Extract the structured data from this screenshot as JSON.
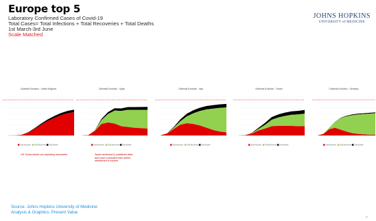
{
  "header": {
    "title": "Europe top 5",
    "subtitle1": "Laboratory Confirmed Cases of Covid-19",
    "subtitle2": "Total Cases= Total Infections + Total Recoveries + Total Deaths",
    "subtitle3": "1st March-3rd June",
    "scale_note": "Scale Matched"
  },
  "logo": {
    "line1": "JOHNS HOPKINS",
    "line2": "UNIVERSITY of MEDICINE"
  },
  "notes": {
    "uk": "UK Government not reporting recoveries",
    "spain": "Spain reviewed & published data and have corrected their series mentioned in source"
  },
  "footer": {
    "source": "Source: Johns Hopkins University of Medicine",
    "analysis": "Analysis & Graphics: Present Value",
    "page": "##"
  },
  "colors": {
    "infections": "#e00000",
    "recoveries": "#92d050",
    "deaths": "#000000",
    "reference": "#e00000"
  },
  "chart_data": [
    {
      "type": "area",
      "title": "Outbreak Evolution - United Kingdom",
      "x": [
        0,
        0.1,
        0.2,
        0.3,
        0.4,
        0.5,
        0.6,
        0.7,
        0.8,
        0.9,
        1.0
      ],
      "series": [
        {
          "name": "Total Infections",
          "values": [
            0,
            0.002,
            0.015,
            0.07,
            0.17,
            0.28,
            0.38,
            0.46,
            0.53,
            0.58,
            0.61
          ]
        },
        {
          "name": "Total Recoveries",
          "values": [
            0,
            0,
            0,
            0,
            0,
            0,
            0,
            0,
            0,
            0,
            0
          ]
        },
        {
          "name": "Total Deaths",
          "values": [
            0,
            0,
            0.002,
            0.01,
            0.02,
            0.03,
            0.04,
            0.05,
            0.055,
            0.06,
            0.065
          ]
        }
      ],
      "legend": [
        "Total Infections",
        "Total Recoveries",
        "Total Deaths"
      ],
      "legend_position": "bottom"
    },
    {
      "type": "area",
      "title": "Outbreak Evolution - Spain",
      "x": [
        0,
        0.1,
        0.2,
        0.3,
        0.4,
        0.5,
        0.6,
        0.7,
        0.8,
        0.9,
        1.0
      ],
      "series": [
        {
          "name": "Total Infections",
          "values": [
            0,
            0.01,
            0.12,
            0.3,
            0.34,
            0.31,
            0.24,
            0.22,
            0.2,
            0.19,
            0.18
          ]
        },
        {
          "name": "Total Recoveries",
          "values": [
            0,
            0,
            0.01,
            0.1,
            0.22,
            0.34,
            0.4,
            0.45,
            0.47,
            0.48,
            0.49
          ]
        },
        {
          "name": "Total Deaths",
          "values": [
            0,
            0,
            0.005,
            0.03,
            0.05,
            0.06,
            0.065,
            0.07,
            0.072,
            0.073,
            0.075
          ]
        }
      ],
      "legend": [
        "Total Infections",
        "Total Recoveries",
        "Total Deaths"
      ],
      "legend_position": "bottom"
    },
    {
      "type": "area",
      "title": "Outbreak Evolution - Italy",
      "x": [
        0,
        0.1,
        0.2,
        0.3,
        0.4,
        0.5,
        0.6,
        0.7,
        0.8,
        0.9,
        1.0
      ],
      "series": [
        {
          "name": "Total Infections",
          "values": [
            0.005,
            0.05,
            0.17,
            0.28,
            0.32,
            0.3,
            0.26,
            0.2,
            0.14,
            0.1,
            0.08
          ]
        },
        {
          "name": "Total Recoveries",
          "values": [
            0,
            0.005,
            0.03,
            0.09,
            0.18,
            0.28,
            0.38,
            0.48,
            0.56,
            0.62,
            0.65
          ]
        },
        {
          "name": "Total Deaths",
          "values": [
            0,
            0.005,
            0.02,
            0.05,
            0.07,
            0.08,
            0.085,
            0.09,
            0.092,
            0.093,
            0.094
          ]
        }
      ],
      "legend": [
        "Total Infections",
        "Total Recoveries",
        "Total Deaths"
      ],
      "legend_position": "bottom"
    },
    {
      "type": "area",
      "title": "Outbreak Evolution - France",
      "x": [
        0,
        0.1,
        0.2,
        0.3,
        0.4,
        0.5,
        0.6,
        0.7,
        0.8,
        0.9,
        1.0
      ],
      "series": [
        {
          "name": "Total Infections",
          "values": [
            0,
            0.01,
            0.05,
            0.13,
            0.18,
            0.24,
            0.25,
            0.25,
            0.25,
            0.24,
            0.24
          ]
        },
        {
          "name": "Total Recoveries",
          "values": [
            0,
            0,
            0.01,
            0.04,
            0.1,
            0.17,
            0.22,
            0.26,
            0.29,
            0.31,
            0.33
          ]
        },
        {
          "name": "Total Deaths",
          "values": [
            0,
            0,
            0.01,
            0.03,
            0.05,
            0.07,
            0.08,
            0.085,
            0.09,
            0.092,
            0.095
          ]
        }
      ],
      "legend": [
        "Total Infections",
        "Total Recoveries",
        "Total Deaths"
      ],
      "legend_position": "bottom"
    },
    {
      "type": "area",
      "title": "Outbreak Evolution - Germany",
      "x": [
        0,
        0.1,
        0.2,
        0.3,
        0.4,
        0.5,
        0.6,
        0.7,
        0.8,
        0.9,
        1.0
      ],
      "series": [
        {
          "name": "Total Infections",
          "values": [
            0.002,
            0.04,
            0.16,
            0.2,
            0.15,
            0.1,
            0.06,
            0.04,
            0.03,
            0.02,
            0.02
          ]
        },
        {
          "name": "Total Recoveries",
          "values": [
            0,
            0.005,
            0.04,
            0.15,
            0.3,
            0.4,
            0.47,
            0.51,
            0.53,
            0.55,
            0.56
          ]
        },
        {
          "name": "Total Deaths",
          "values": [
            0,
            0,
            0.002,
            0.005,
            0.01,
            0.015,
            0.018,
            0.02,
            0.021,
            0.022,
            0.022
          ]
        }
      ],
      "legend": [
        "Total Infections",
        "Total Recoveries",
        "Total Deaths"
      ],
      "legend_position": "bottom"
    }
  ]
}
